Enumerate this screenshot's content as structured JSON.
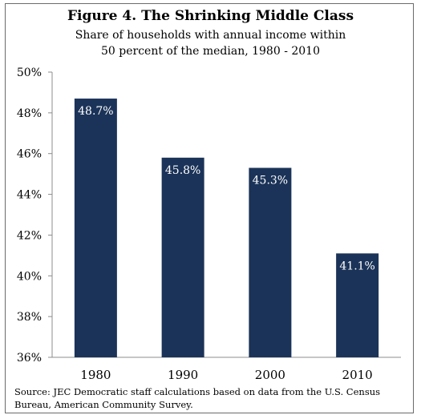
{
  "chart_data": {
    "type": "bar",
    "title": "Figure 4. The Shrinking Middle Class",
    "subtitle_lines": [
      "Share of households with annual income within",
      "50 percent of the median, 1980 - 2010"
    ],
    "categories": [
      "1980",
      "1990",
      "2000",
      "2010"
    ],
    "values": [
      48.7,
      45.8,
      45.3,
      41.1
    ],
    "value_labels": [
      "48.7%",
      "45.8%",
      "45.3%",
      "41.1%"
    ],
    "ylim": [
      36,
      50
    ],
    "yticks": [
      36,
      38,
      40,
      42,
      44,
      46,
      48,
      50
    ],
    "ytick_labels": [
      "36%",
      "38%",
      "40%",
      "42%",
      "44%",
      "46%",
      "48%",
      "50%"
    ],
    "xlabel": "",
    "ylabel": "",
    "grid": false,
    "legend": "none",
    "bar_color": "#1b3358",
    "label_color": "#ffffff"
  },
  "source": {
    "line1": "Source: JEC Democratic staff calculations based on data from the U.S. Census",
    "line2": "Bureau, American Community Survey."
  }
}
